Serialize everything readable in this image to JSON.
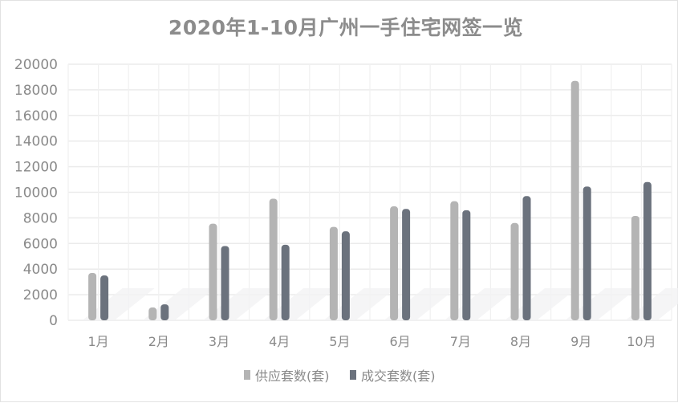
{
  "chart_data": {
    "type": "bar",
    "title": "2020年1-10月广州一手住宅网签一览",
    "categories": [
      "1月",
      "2月",
      "3月",
      "4月",
      "5月",
      "6月",
      "7月",
      "8月",
      "9月",
      "10月"
    ],
    "series": [
      {
        "name": "供应套数(套)",
        "color": "#b4b4b4",
        "values": [
          3700,
          1000,
          7550,
          9500,
          7300,
          8900,
          9300,
          7600,
          18700,
          8150
        ]
      },
      {
        "name": "成交套数(套)",
        "color": "#6b727d",
        "values": [
          3500,
          1250,
          5800,
          5900,
          6950,
          8700,
          8600,
          9700,
          10450,
          10800
        ]
      }
    ],
    "ylim": [
      0,
      20000
    ],
    "yticks": [
      "0",
      "2000",
      "4000",
      "6000",
      "8000",
      "10000",
      "12000",
      "14000",
      "16000",
      "18000",
      "20000"
    ],
    "grid": true,
    "legend_position": "bottom",
    "xlabel": "",
    "ylabel": ""
  }
}
